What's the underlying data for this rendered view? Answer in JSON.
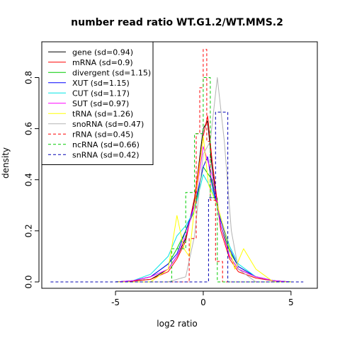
{
  "chart_data": {
    "type": "line",
    "title": "number read ratio WT.G1.2/WT.MMS.2",
    "xlabel": "log2 ratio",
    "ylabel": "density",
    "xlim": [
      -9.2,
      6.5
    ],
    "ylim": [
      -0.025,
      0.94
    ],
    "x_ticks": [
      -5,
      0,
      5
    ],
    "x_tick_labels": [
      "-5",
      "0",
      "5"
    ],
    "y_ticks": [
      0.0,
      0.2,
      0.4,
      0.6,
      0.8
    ],
    "y_tick_labels": [
      "0.0",
      "0.2",
      "0.4",
      "0.6",
      "0.8"
    ],
    "legend_position": "top-left",
    "grid": false,
    "series": [
      {
        "name": "gene (sd=0.94)",
        "color": "#000000",
        "dash": "solid",
        "x": [
          -5,
          -4,
          -3,
          -2,
          -1.5,
          -1,
          -0.5,
          0,
          0.25,
          0.5,
          1,
          1.5,
          2,
          3,
          4,
          5
        ],
        "y": [
          0.0,
          0.004,
          0.01,
          0.05,
          0.1,
          0.17,
          0.32,
          0.6,
          0.63,
          0.45,
          0.22,
          0.1,
          0.05,
          0.02,
          0.005,
          0.0
        ]
      },
      {
        "name": "mRNA (sd=0.9)",
        "color": "#ff0000",
        "dash": "solid",
        "x": [
          -5,
          -4,
          -3,
          -2,
          -1.5,
          -1,
          -0.5,
          0,
          0.25,
          0.5,
          1,
          1.5,
          2,
          3,
          4,
          5
        ],
        "y": [
          0.0,
          0.003,
          0.01,
          0.04,
          0.09,
          0.16,
          0.33,
          0.57,
          0.65,
          0.48,
          0.2,
          0.09,
          0.04,
          0.015,
          0.004,
          0.0
        ]
      },
      {
        "name": "divergent (sd=1.15)",
        "color": "#00cc00",
        "dash": "solid",
        "x": [
          -5,
          -4,
          -3,
          -2,
          -1.5,
          -1,
          -0.5,
          0,
          0.5,
          1,
          1.5,
          2,
          3,
          4,
          5
        ],
        "y": [
          0.0,
          0.005,
          0.02,
          0.07,
          0.13,
          0.2,
          0.28,
          0.45,
          0.4,
          0.22,
          0.12,
          0.06,
          0.02,
          0.005,
          0.0
        ]
      },
      {
        "name": "XUT (sd=1.15)",
        "color": "#0000ff",
        "dash": "solid",
        "x": [
          -5,
          -4,
          -3,
          -2,
          -1.5,
          -1,
          -0.5,
          0,
          0.25,
          0.5,
          1,
          1.5,
          2,
          3,
          4,
          5
        ],
        "y": [
          0.0,
          0.005,
          0.02,
          0.07,
          0.11,
          0.2,
          0.3,
          0.45,
          0.49,
          0.38,
          0.24,
          0.13,
          0.06,
          0.02,
          0.005,
          0.0
        ]
      },
      {
        "name": "CUT (sd=1.17)",
        "color": "#00e5e5",
        "dash": "solid",
        "x": [
          -5,
          -4,
          -3,
          -2,
          -1.5,
          -1,
          -0.5,
          0,
          0.5,
          1,
          1.5,
          2,
          3,
          4,
          5
        ],
        "y": [
          0.0,
          0.005,
          0.03,
          0.1,
          0.18,
          0.22,
          0.28,
          0.42,
          0.36,
          0.25,
          0.14,
          0.07,
          0.02,
          0.005,
          0.0
        ]
      },
      {
        "name": "SUT (sd=0.97)",
        "color": "#ff00ff",
        "dash": "solid",
        "x": [
          -5,
          -4,
          -3,
          -2,
          -1.5,
          -1,
          -0.5,
          0,
          0.5,
          1,
          1.5,
          2,
          3,
          4,
          5
        ],
        "y": [
          0.0,
          0.005,
          0.02,
          0.05,
          0.1,
          0.18,
          0.3,
          0.53,
          0.42,
          0.22,
          0.1,
          0.05,
          0.02,
          0.005,
          0.0
        ]
      },
      {
        "name": "tRNA (sd=1.26)",
        "color": "#ffff00",
        "dash": "solid",
        "x": [
          -5,
          -3,
          -2,
          -1.5,
          -1.1,
          -0.8,
          -0.4,
          0,
          0.3,
          0.8,
          1.3,
          1.8,
          2.3,
          3,
          4,
          5
        ],
        "y": [
          0.0,
          0.0,
          0.05,
          0.26,
          0.13,
          0.1,
          0.35,
          0.57,
          0.38,
          0.3,
          0.18,
          0.05,
          0.13,
          0.05,
          0.0,
          0.0
        ]
      },
      {
        "name": "snoRNA (sd=0.47)",
        "color": "#b3b3b3",
        "dash": "solid",
        "x": [
          -2,
          -1,
          -0.5,
          0,
          0.4,
          0.8,
          1.2,
          1.6,
          2,
          3
        ],
        "y": [
          0.0,
          0.02,
          0.18,
          0.5,
          0.55,
          0.8,
          0.55,
          0.2,
          0.05,
          0.0
        ]
      },
      {
        "name": "rRNA (sd=0.45)",
        "color": "#ff0000",
        "dash": "dashed",
        "x": [
          -3,
          -0.8,
          -0.8,
          -0.4,
          -0.4,
          -0.2,
          -0.2,
          0,
          0,
          0.2,
          0.2,
          0.4,
          0.4,
          0.7,
          0.7,
          1.1,
          1.1,
          1.5,
          1.5,
          4
        ],
        "y": [
          0.0,
          0.0,
          0.17,
          0.17,
          0.58,
          0.58,
          0.76,
          0.76,
          0.91,
          0.91,
          0.55,
          0.55,
          0.32,
          0.32,
          0.08,
          0.08,
          0.0,
          0.0,
          0.0,
          0.0
        ]
      },
      {
        "name": "ncRNA (sd=0.66)",
        "color": "#00cc00",
        "dash": "dashed",
        "x": [
          -5,
          -1.8,
          -1.8,
          -1.0,
          -1.0,
          -0.5,
          -0.5,
          0,
          0,
          0.4,
          0.4,
          0.8,
          0.8,
          1.3,
          1.3,
          5
        ],
        "y": [
          0.0,
          0.0,
          0.13,
          0.13,
          0.35,
          0.35,
          0.58,
          0.58,
          0.8,
          0.8,
          0.33,
          0.33,
          0.0,
          0.0,
          0.0,
          0.0
        ]
      },
      {
        "name": "snRNA (sd=0.42)",
        "color": "#0000b3",
        "dash": "dashed",
        "x": [
          -8.7,
          -0.3,
          -0.3,
          0.3,
          0.3,
          0.7,
          0.7,
          1.4,
          1.4,
          5.7
        ],
        "y": [
          0.0,
          0.0,
          0.0,
          0.0,
          0.33,
          0.33,
          0.665,
          0.665,
          0.0,
          0.0
        ]
      }
    ]
  }
}
